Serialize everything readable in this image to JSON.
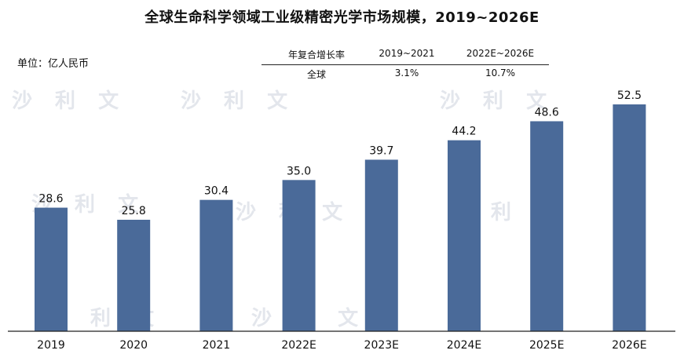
{
  "title": "全球生命科学领域工业级精密光学市场规模，2019~2026E",
  "unit_label": "单位：亿人民币",
  "cagr_table": {
    "header": [
      "年复合增长率",
      "2019~2021",
      "2022E~2026E"
    ],
    "row": [
      "全球",
      "3.1%",
      "10.7%"
    ]
  },
  "watermark_text": "沙 利 文",
  "colors": {
    "bar": "#4a6a99",
    "axis": "#222222"
  },
  "chart_data": {
    "type": "bar",
    "title": "全球生命科学领域工业级精密光学市场规模，2019~2026E",
    "ylabel": "单位：亿人民币",
    "categories": [
      "2019",
      "2020",
      "2021",
      "2022E",
      "2023E",
      "2024E",
      "2025E",
      "2026E"
    ],
    "values": [
      28.6,
      25.8,
      30.4,
      35.0,
      39.7,
      44.2,
      48.6,
      52.5
    ],
    "value_labels": [
      "28.6",
      "25.8",
      "30.4",
      "35.0",
      "39.7",
      "44.2",
      "48.6",
      "52.5"
    ],
    "ylim": [
      0,
      52.5
    ],
    "grid": false,
    "legend": "none"
  }
}
